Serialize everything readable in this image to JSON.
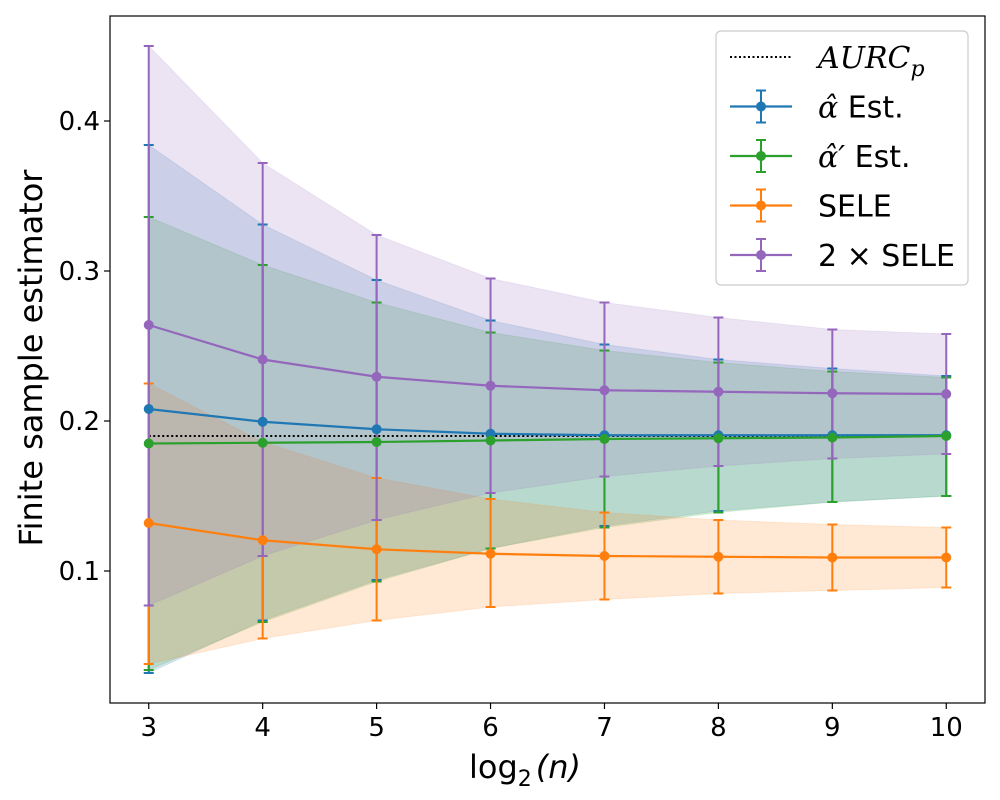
{
  "chart_data": {
    "type": "line",
    "title": "",
    "xlabel": "log2(n)",
    "xlabel_parts": {
      "base": "log",
      "sub": "2",
      "arg": "(n)"
    },
    "ylabel": "Finite sample estimator",
    "xlim": [
      2.66,
      10.34
    ],
    "ylim": [
      0.012,
      0.47
    ],
    "x": [
      3,
      4,
      5,
      6,
      7,
      8,
      9,
      10
    ],
    "xticks": [
      3,
      4,
      5,
      6,
      7,
      8,
      9,
      10
    ],
    "yticks": [
      0.1,
      0.2,
      0.3,
      0.4
    ],
    "ytick_labels": [
      "0.1",
      "0.2",
      "0.3",
      "0.4"
    ],
    "legend_position": "top-right",
    "reference_line": {
      "name": "AURC_p",
      "legend_base": "AURC",
      "legend_sub": "p",
      "value": 0.19,
      "color": "#000000",
      "style": "dotted"
    },
    "series": [
      {
        "name": "α̂ Est.",
        "legend_symbol": "α̂",
        "legend_text": " Est.",
        "color": "#1f77b4",
        "values": [
          0.208,
          0.1995,
          0.1945,
          0.1915,
          0.1905,
          0.1905,
          0.1905,
          0.1905
        ],
        "lower": [
          0.032,
          0.067,
          0.094,
          0.115,
          0.13,
          0.14,
          0.146,
          0.15
        ],
        "upper": [
          0.384,
          0.331,
          0.294,
          0.267,
          0.251,
          0.241,
          0.235,
          0.23
        ]
      },
      {
        "name": "α̂′ Est.",
        "legend_symbol": "α̂′",
        "legend_text": " Est.",
        "color": "#2ca02c",
        "values": [
          0.185,
          0.1855,
          0.186,
          0.187,
          0.188,
          0.1885,
          0.189,
          0.19
        ],
        "lower": [
          0.034,
          0.066,
          0.093,
          0.115,
          0.129,
          0.139,
          0.146,
          0.15
        ],
        "upper": [
          0.336,
          0.304,
          0.279,
          0.259,
          0.247,
          0.239,
          0.233,
          0.229
        ]
      },
      {
        "name": "SELE",
        "legend_symbol": "",
        "legend_text": "SELE",
        "color": "#ff7f0e",
        "values": [
          0.132,
          0.1205,
          0.1145,
          0.1115,
          0.11,
          0.1095,
          0.109,
          0.109
        ],
        "lower": [
          0.038,
          0.055,
          0.067,
          0.076,
          0.081,
          0.085,
          0.087,
          0.089
        ],
        "upper": [
          0.225,
          0.186,
          0.162,
          0.148,
          0.139,
          0.134,
          0.131,
          0.129
        ]
      },
      {
        "name": "2 × SELE",
        "legend_symbol": "",
        "legend_text": "2 × SELE",
        "color": "#9467bd",
        "values": [
          0.264,
          0.241,
          0.2295,
          0.2235,
          0.2205,
          0.2195,
          0.2185,
          0.218
        ],
        "lower": [
          0.077,
          0.11,
          0.134,
          0.152,
          0.163,
          0.17,
          0.175,
          0.178
        ],
        "upper": [
          0.45,
          0.372,
          0.324,
          0.295,
          0.279,
          0.269,
          0.261,
          0.258
        ]
      }
    ]
  }
}
